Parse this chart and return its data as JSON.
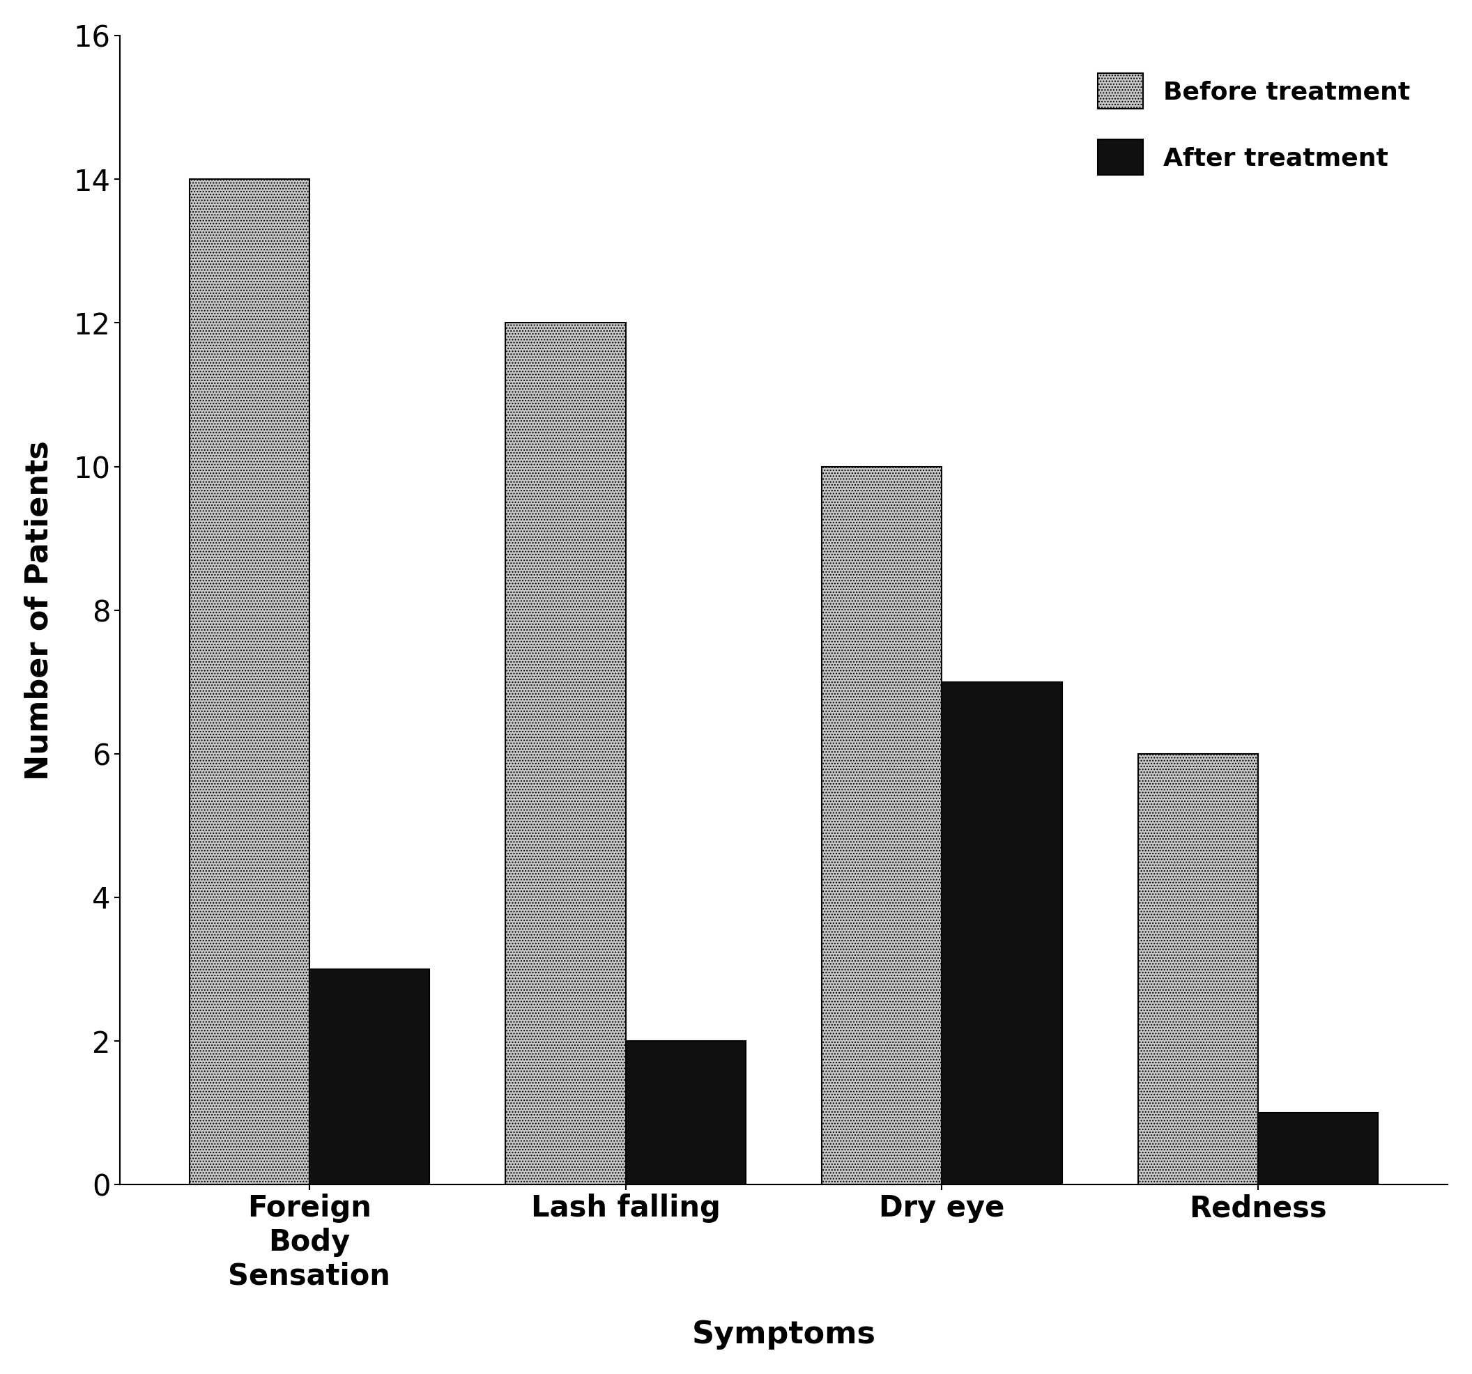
{
  "categories": [
    "Foreign\nBody\nSensation",
    "Lash falling",
    "Dry eye",
    "Redness"
  ],
  "before_values": [
    14,
    12,
    10,
    6
  ],
  "after_values": [
    3,
    2,
    7,
    1
  ],
  "before_color": "#c8c8c8",
  "after_color": "#111111",
  "before_hatch": "....",
  "after_hatch": "",
  "xlabel": "Symptoms",
  "ylabel": "Number of Patients",
  "ylim": [
    0,
    16
  ],
  "yticks": [
    0,
    2,
    4,
    6,
    8,
    10,
    12,
    14,
    16
  ],
  "legend_before": "Before treatment",
  "legend_after": "After treatment",
  "bar_width": 0.38,
  "label_fontsize": 32,
  "tick_fontsize": 30,
  "legend_fontsize": 26,
  "background_color": "#ffffff"
}
